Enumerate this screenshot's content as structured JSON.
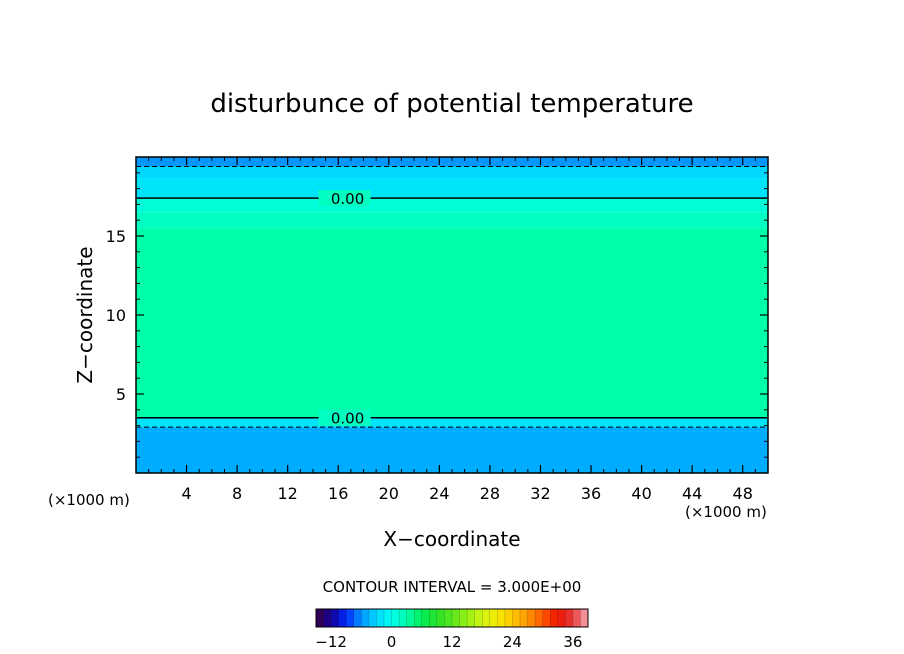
{
  "chart_data": {
    "type": "heatmap",
    "title": "disturbunce of potential temperature",
    "xlabel": "X−coordinate",
    "ylabel": "Z−coordinate",
    "x_unit": "(×1000 m)",
    "x_unit_right": "(×1000 m)",
    "xlim": [
      0,
      50
    ],
    "ylim": [
      0,
      20
    ],
    "x_ticks": [
      4,
      8,
      12,
      16,
      20,
      24,
      28,
      32,
      36,
      40,
      44,
      48
    ],
    "x_tick_labels": [
      "4",
      "8",
      "12",
      "16",
      "20",
      "24",
      "28",
      "32",
      "36",
      "40",
      "44",
      "48"
    ],
    "y_ticks": [
      5,
      10,
      15
    ],
    "y_tick_labels": [
      "5",
      "10",
      "15"
    ],
    "contour_interval_text": "CONTOUR INTERVAL = 3.000E+00",
    "contour_labels": [
      {
        "text": "0.00",
        "x": 16.5,
        "z": 17.4
      },
      {
        "text": "0.00",
        "x": 16.5,
        "z": 3.5
      }
    ],
    "layers": [
      {
        "z0": 19.4,
        "z1": 20,
        "value": -6
      },
      {
        "z0": 18.7,
        "z1": 19.4,
        "value": -3
      },
      {
        "z0": 17.4,
        "z1": 18.7,
        "value": -2
      },
      {
        "z0": 16.5,
        "z1": 17.4,
        "value": 1
      },
      {
        "z0": 15.5,
        "z1": 16.5,
        "value": 2
      },
      {
        "z0": 3.5,
        "z1": 15.5,
        "value": 3
      },
      {
        "z0": 2.9,
        "z1": 3.5,
        "value": -2
      },
      {
        "z0": 0,
        "z1": 2.9,
        "value": -5
      }
    ],
    "zero_contours_z": [
      17.4,
      3.5
    ],
    "negative_contours_z": [
      19.4,
      2.9
    ],
    "colorbar": {
      "min": -15,
      "max": 39,
      "ticks": [
        -12,
        0,
        12,
        24,
        36
      ],
      "tick_labels": [
        "−12",
        "0",
        "12",
        "24",
        "36"
      ]
    }
  }
}
